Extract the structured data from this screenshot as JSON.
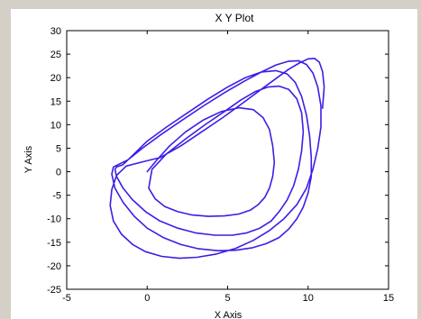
{
  "window": {
    "title": "X Y Plot"
  },
  "colors": {
    "window_bg": "#d4d0c8",
    "plot_bg": "#ffffff",
    "series": "#3a1fe6",
    "axes": "#000000"
  },
  "chart_data": {
    "type": "line",
    "title": "X Y Plot",
    "xlabel": "X Axis",
    "ylabel": "Y Axis",
    "xlim": [
      -5,
      15
    ],
    "ylim": [
      -25,
      30
    ],
    "xticks": [
      -5,
      0,
      5,
      10,
      15
    ],
    "yticks": [
      -25,
      -20,
      -15,
      -10,
      -5,
      0,
      5,
      10,
      15,
      20,
      25,
      30
    ],
    "grid": false,
    "legend": "none",
    "series": [
      {
        "x": [
          0,
          0.6,
          1.4,
          2.4,
          3.5,
          4.6,
          5.7,
          6.6,
          7.2,
          7.6,
          7.8,
          7.9,
          7.8,
          7.6,
          7.3,
          6.9,
          6.4,
          5.7,
          4.8,
          3.8,
          2.8,
          1.9,
          1.1,
          0.5,
          0.1,
          0.3,
          1.2,
          2.4,
          3.6,
          4.8,
          5.8,
          6.7,
          7.5,
          8.2,
          8.8,
          9.3,
          9.6,
          9.7,
          9.6,
          9.4,
          9.1,
          8.7,
          8.2,
          7.7,
          7.0,
          6.2,
          5.3,
          4.2,
          3.0,
          1.9,
          0.8,
          -0.1,
          -0.9,
          -1.5,
          -1.9,
          -2.0,
          -1.9,
          -1.5,
          -0.9,
          0.0,
          1.2,
          2.5,
          3.8,
          5.0,
          6.1,
          7.1,
          8.0,
          8.7,
          9.2,
          9.6,
          9.9,
          10.1,
          10.2,
          10.2,
          10.0,
          9.7,
          9.3,
          8.8,
          8.2,
          7.4,
          6.5,
          5.5,
          4.4,
          3.2,
          2.1,
          1.0,
          0.0,
          -0.8,
          -1.5,
          -2.0,
          -2.2,
          -2.1,
          -1.8,
          -1.2,
          -0.3,
          0.9,
          2.2,
          3.5,
          4.8,
          6.0,
          7.1,
          8.0,
          8.8,
          9.4,
          9.9,
          10.3,
          10.6,
          10.8,
          10.8,
          10.6,
          10.3,
          9.9,
          9.3,
          8.5,
          7.6,
          6.6,
          5.5,
          4.3,
          3.1,
          2.0,
          0.9,
          -0.1,
          -0.9,
          -1.6,
          -2.1,
          -2.3,
          -2.2,
          -1.9,
          -1.3,
          -0.4,
          0.8,
          2.1,
          3.4,
          4.7,
          5.9,
          7.0,
          8.0,
          8.8,
          9.5,
          10.0,
          10.4,
          10.7,
          10.9,
          11.0,
          10.9
        ],
        "y": [
          0,
          2.5,
          5.5,
          8.5,
          11.0,
          12.8,
          13.6,
          13.2,
          11.5,
          9.0,
          5.5,
          2.0,
          -1.0,
          -3.5,
          -5.5,
          -7.0,
          -8.2,
          -9.0,
          -9.4,
          -9.5,
          -9.2,
          -8.5,
          -7.4,
          -5.8,
          -3.5,
          0.5,
          3.8,
          7.0,
          10.0,
          12.8,
          15.2,
          17.0,
          18.0,
          18.2,
          17.5,
          15.5,
          12.5,
          8.5,
          4.5,
          0.5,
          -3.0,
          -6.0,
          -8.5,
          -10.5,
          -12.0,
          -13.0,
          -13.5,
          -13.5,
          -13.0,
          -12.0,
          -10.5,
          -8.5,
          -6.0,
          -3.5,
          -1.0,
          0.5,
          1.0,
          1.5,
          3.5,
          6.5,
          9.5,
          12.5,
          15.5,
          18.0,
          20.0,
          21.2,
          21.5,
          20.8,
          19.0,
          16.0,
          12.0,
          7.5,
          3.0,
          -1.0,
          -4.5,
          -7.5,
          -10.0,
          -12.2,
          -14.0,
          -15.3,
          -16.2,
          -16.7,
          -16.8,
          -16.4,
          -15.5,
          -14.0,
          -12.0,
          -9.5,
          -6.5,
          -3.5,
          -0.5,
          1.0,
          1.5,
          2.5,
          5.0,
          8.0,
          11.0,
          14.0,
          16.8,
          19.2,
          21.2,
          22.7,
          23.5,
          23.6,
          22.8,
          21.0,
          18.0,
          14.0,
          9.5,
          5.0,
          0.5,
          -3.5,
          -7.0,
          -10.0,
          -12.5,
          -14.6,
          -16.3,
          -17.5,
          -18.2,
          -18.4,
          -18.0,
          -17.0,
          -15.5,
          -13.3,
          -10.5,
          -7.2,
          -3.8,
          -0.8,
          1.2,
          2.0,
          3.0,
          5.5,
          8.5,
          11.5,
          14.5,
          17.3,
          19.8,
          21.8,
          23.2,
          24.0,
          24.1,
          23.3,
          21.3,
          18.0,
          13.5
        ]
      }
    ]
  }
}
